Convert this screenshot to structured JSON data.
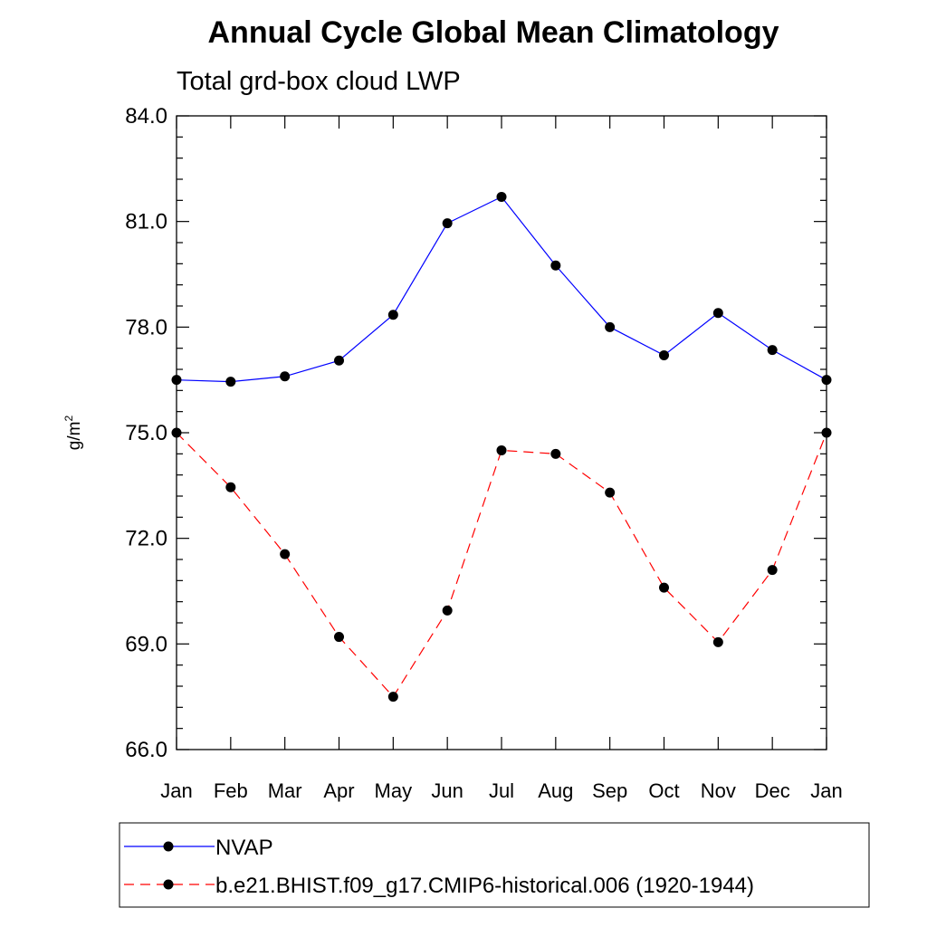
{
  "chart_data": {
    "type": "line",
    "title": "Annual Cycle Global Mean Climatology",
    "subtitle": "Total grd-box cloud LWP",
    "ylabel_base": "g/m",
    "ylabel_sup": "2",
    "ylim": [
      66.0,
      84.0
    ],
    "yticks": [
      66.0,
      69.0,
      72.0,
      75.0,
      78.0,
      81.0,
      84.0
    ],
    "ytick_labels": [
      "66.0",
      "69.0",
      "72.0",
      "75.0",
      "78.0",
      "81.0",
      "84.0"
    ],
    "categories": [
      "Jan",
      "Feb",
      "Mar",
      "Apr",
      "May",
      "Jun",
      "Jul",
      "Aug",
      "Sep",
      "Oct",
      "Nov",
      "Dec",
      "Jan"
    ],
    "series": [
      {
        "name": "NVAP",
        "color": "#0000ff",
        "dash": "solid",
        "values": [
          76.5,
          76.45,
          76.6,
          77.05,
          78.35,
          80.95,
          81.7,
          79.75,
          78.0,
          77.2,
          78.4,
          77.35,
          76.5
        ]
      },
      {
        "name": "b.e21.BHIST.f09_g17.CMIP6-historical.006 (1920-1944)",
        "color": "#ff0000",
        "dash": "dashed",
        "values": [
          75.0,
          73.45,
          71.55,
          69.2,
          67.5,
          69.95,
          74.5,
          74.4,
          73.3,
          70.6,
          69.05,
          71.1,
          75.0
        ]
      }
    ],
    "grid": false,
    "legend_position": "bottom"
  }
}
